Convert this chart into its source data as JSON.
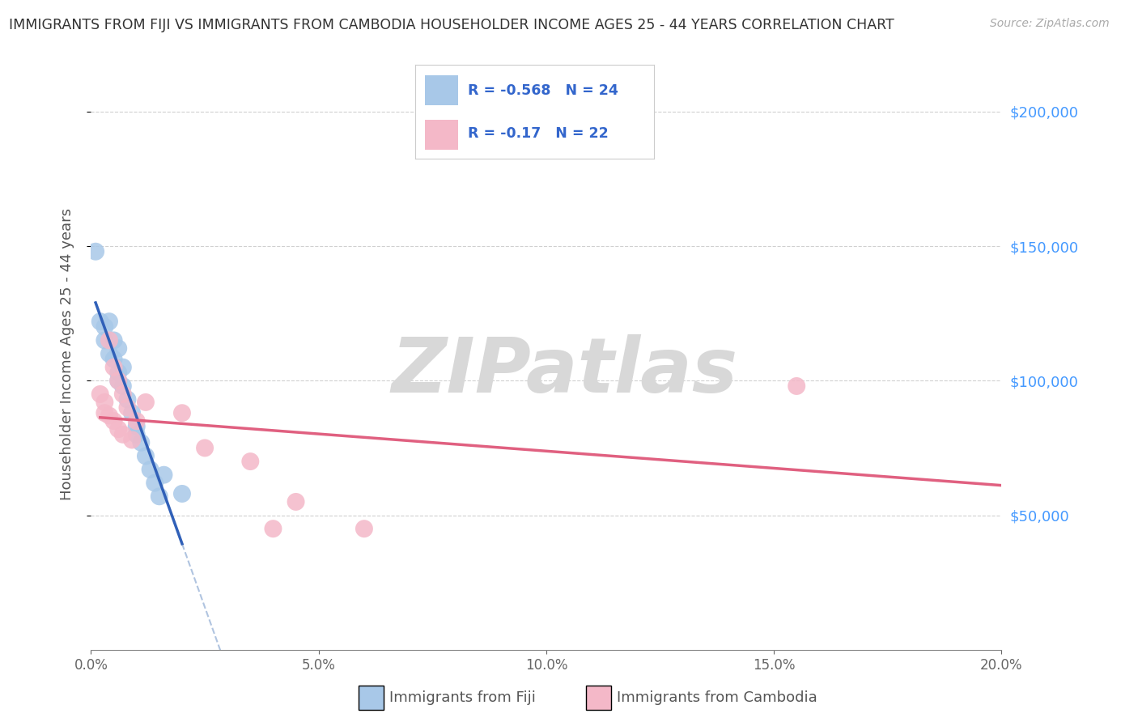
{
  "title": "IMMIGRANTS FROM FIJI VS IMMIGRANTS FROM CAMBODIA HOUSEHOLDER INCOME AGES 25 - 44 YEARS CORRELATION CHART",
  "source": "Source: ZipAtlas.com",
  "xlabel_fiji": "Immigrants from Fiji",
  "xlabel_cambodia": "Immigrants from Cambodia",
  "ylabel": "Householder Income Ages 25 - 44 years",
  "xlim": [
    0.0,
    0.2
  ],
  "ylim": [
    0,
    220000
  ],
  "xticks": [
    0.0,
    0.05,
    0.1,
    0.15,
    0.2
  ],
  "xtick_labels": [
    "0.0%",
    "5.0%",
    "10.0%",
    "15.0%",
    "20.0%"
  ],
  "yticks": [
    50000,
    100000,
    150000,
    200000
  ],
  "ytick_labels": [
    "$50,000",
    "$100,000",
    "$150,000",
    "$200,000"
  ],
  "fiji_R": -0.568,
  "fiji_N": 24,
  "cambodia_R": -0.17,
  "cambodia_N": 22,
  "fiji_color": "#a8c8e8",
  "cambodia_color": "#f4b8c8",
  "fiji_line_color": "#3060b8",
  "cambodia_line_color": "#e06080",
  "fiji_dash_color": "#b0c4e0",
  "watermark_text": "ZIPatlas",
  "watermark_color": "#d8d8d8",
  "background_color": "#ffffff",
  "grid_color": "#d0d0d0",
  "fiji_x": [
    0.001,
    0.002,
    0.003,
    0.003,
    0.004,
    0.004,
    0.005,
    0.005,
    0.006,
    0.006,
    0.006,
    0.007,
    0.007,
    0.008,
    0.009,
    0.01,
    0.01,
    0.011,
    0.012,
    0.013,
    0.014,
    0.015,
    0.016,
    0.02
  ],
  "fiji_y": [
    148000,
    122000,
    120000,
    115000,
    122000,
    110000,
    115000,
    108000,
    112000,
    103000,
    100000,
    105000,
    98000,
    93000,
    88000,
    83000,
    80000,
    77000,
    72000,
    67000,
    62000,
    57000,
    65000,
    58000
  ],
  "cambodia_x": [
    0.002,
    0.003,
    0.003,
    0.004,
    0.004,
    0.005,
    0.005,
    0.006,
    0.006,
    0.007,
    0.007,
    0.008,
    0.009,
    0.01,
    0.012,
    0.02,
    0.025,
    0.035,
    0.04,
    0.045,
    0.06,
    0.155
  ],
  "cambodia_y": [
    95000,
    92000,
    88000,
    115000,
    87000,
    105000,
    85000,
    100000,
    82000,
    95000,
    80000,
    90000,
    78000,
    85000,
    92000,
    88000,
    75000,
    70000,
    45000,
    55000,
    45000,
    98000
  ]
}
